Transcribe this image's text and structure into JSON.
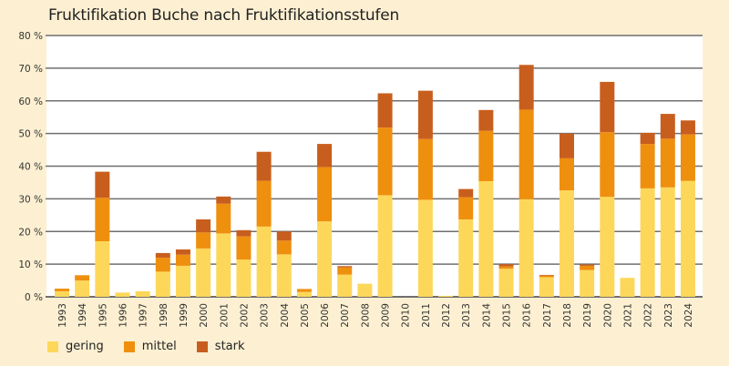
{
  "chart_data": {
    "type": "bar",
    "stacked": true,
    "title": "Fruktifikation Buche nach Fruktifikationsstufen",
    "xlabel": "",
    "ylabel": "",
    "ylim": [
      0,
      80
    ],
    "yticks": [
      0,
      10,
      20,
      30,
      40,
      50,
      60,
      70,
      80
    ],
    "ytick_labels": [
      "0 %",
      "10 %",
      "20 %",
      "30 %",
      "40 %",
      "50 %",
      "60 %",
      "70 %",
      "80 %"
    ],
    "grid": true,
    "legend_position": "bottom-left",
    "categories": [
      "1993",
      "1994",
      "1995",
      "1996",
      "1997",
      "1998",
      "1999",
      "2000",
      "2001",
      "2002",
      "2003",
      "2004",
      "2005",
      "2006",
      "2007",
      "2008",
      "2009",
      "2010",
      "2011",
      "2012",
      "2013",
      "2014",
      "2015",
      "2016",
      "2017",
      "2018",
      "2019",
      "2020",
      "2021",
      "2022",
      "2023",
      "2024"
    ],
    "series": [
      {
        "name": "gering",
        "color": "#FDD75A",
        "values": [
          1.7,
          5.0,
          17.0,
          1.3,
          1.7,
          7.7,
          9.5,
          14.8,
          19.4,
          11.4,
          21.5,
          13.0,
          1.5,
          23.1,
          6.8,
          4.0,
          31.1,
          0,
          29.7,
          0.3,
          23.7,
          35.4,
          8.6,
          29.9,
          6.0,
          32.6,
          8.2,
          30.6,
          5.8,
          33.2,
          33.5,
          35.5
        ]
      },
      {
        "name": "mittel",
        "color": "#EF8F0E",
        "values": [
          0.8,
          1.6,
          13.3,
          0,
          0,
          4.3,
          3.4,
          4.9,
          9.1,
          7.1,
          14.0,
          4.2,
          0.9,
          16.6,
          2.2,
          0,
          20.7,
          0,
          18.6,
          0,
          6.8,
          15.4,
          0.7,
          27.4,
          0.5,
          9.8,
          1.3,
          19.8,
          0,
          13.6,
          14.9,
          14.2
        ]
      },
      {
        "name": "stark",
        "color": "#C85E1D",
        "values": [
          0,
          0,
          8.0,
          0,
          0,
          1.4,
          1.6,
          4.0,
          2.2,
          1.9,
          8.9,
          2.8,
          0,
          7.1,
          0.4,
          0,
          10.5,
          0,
          14.8,
          0,
          2.5,
          6.4,
          0.7,
          13.7,
          0.2,
          7.6,
          0.4,
          15.4,
          0,
          3.4,
          7.6,
          4.3
        ]
      }
    ]
  },
  "legend": {
    "items": [
      {
        "label": "gering",
        "color": "#FDD75A"
      },
      {
        "label": "mittel",
        "color": "#EF8F0E"
      },
      {
        "label": "stark",
        "color": "#C85E1D"
      }
    ]
  }
}
